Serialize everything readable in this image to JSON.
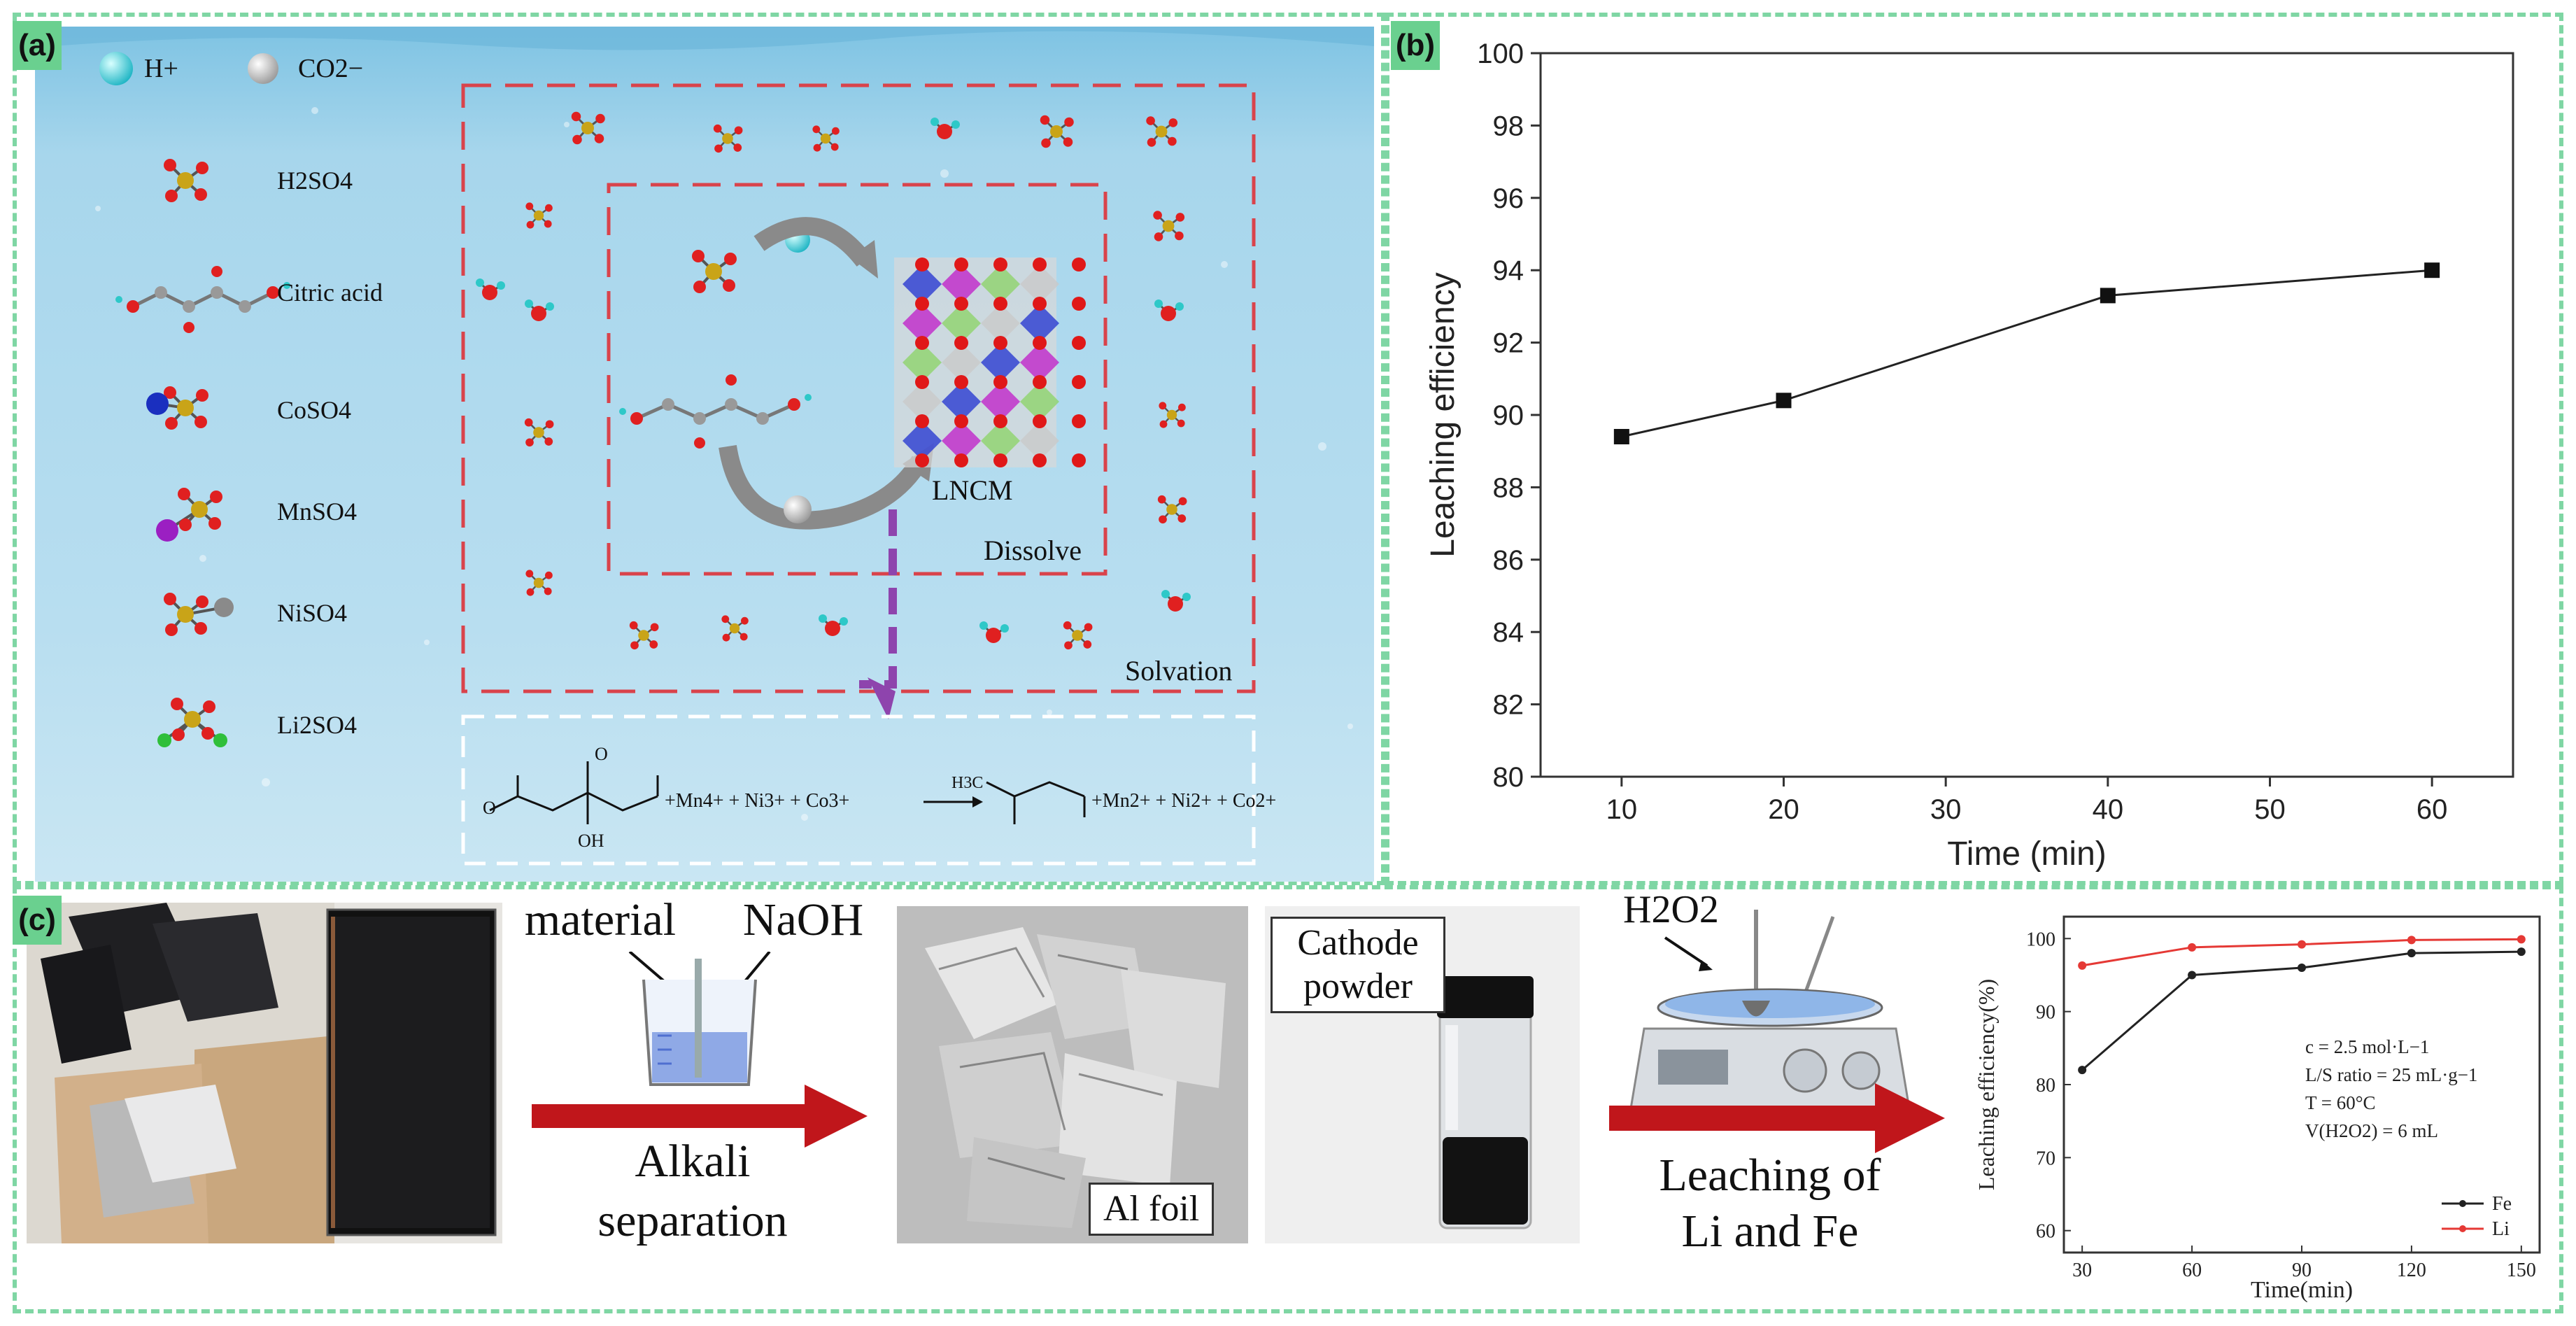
{
  "panel_a": {
    "tag": "(a)",
    "legend": {
      "h_label": "H+",
      "co2_label": "CO2−"
    },
    "molecules": [
      "H2SO4",
      "Citric acid",
      "CoSO4",
      "MnSO4",
      "NiSO4",
      "Li2SO4"
    ],
    "center_label": "LNCM",
    "dissolve_label": "Dissolve",
    "solvation_label": "Solvation",
    "equation": {
      "reactant_ions": "+Mn4+ + Ni3+ + Co3+",
      "product_ions": "+Mn2+ + Ni2+ + Co2+",
      "oh_label": "OH",
      "h3c_label": "H3C"
    },
    "colors": {
      "water": "#a9d7ec",
      "dash": "#d9434b",
      "arrow": "#8e44ad"
    }
  },
  "panel_b": {
    "tag": "(b)",
    "chart_data": {
      "type": "line",
      "x": [
        10,
        20,
        40,
        60
      ],
      "y": [
        89.4,
        90.4,
        93.3,
        94.0
      ],
      "xlabel": "Time (min)",
      "ylabel": "Leaching efficiency",
      "xticks": [
        10,
        20,
        30,
        40,
        50,
        60
      ],
      "yticks": [
        80,
        82,
        84,
        86,
        88,
        90,
        92,
        94,
        96,
        98,
        100
      ],
      "xlim": [
        5,
        65
      ],
      "ylim": [
        80,
        100
      ],
      "grid": false
    }
  },
  "panel_c": {
    "tag": "(c)",
    "material_label": "material",
    "naoh_label": "NaOH",
    "step1_line1": "Alkali",
    "step1_line2": "separation",
    "al_foil_label": "Al foil",
    "cathode_line1": "Cathode",
    "cathode_line2": "powder",
    "h2o2_label": "H2O2",
    "step2_line1": "Leaching of",
    "step2_line2": "Li and Fe",
    "arrow_color": "#c0161b",
    "chart_data": {
      "type": "line",
      "x": [
        30,
        60,
        90,
        120,
        150
      ],
      "series": [
        {
          "name": "Fe",
          "color": "#222222",
          "values": [
            82,
            95,
            96,
            98,
            98.2
          ]
        },
        {
          "name": "Li",
          "color": "#e53935",
          "values": [
            96.3,
            98.8,
            99.2,
            99.8,
            99.9
          ]
        }
      ],
      "xlabel": "Time(min)",
      "ylabel": "Leaching efficiency(%)",
      "xticks": [
        30,
        60,
        90,
        120,
        150
      ],
      "yticks": [
        60,
        70,
        80,
        90,
        100
      ],
      "xlim": [
        25,
        155
      ],
      "ylim": [
        57,
        103
      ],
      "legend_position": "bottom-right",
      "annotations": [
        "c = 2.5 mol·L−1",
        "L/S ratio = 25 mL·g−1",
        "T = 60°C",
        "V(H2O2) = 6 mL"
      ]
    }
  }
}
